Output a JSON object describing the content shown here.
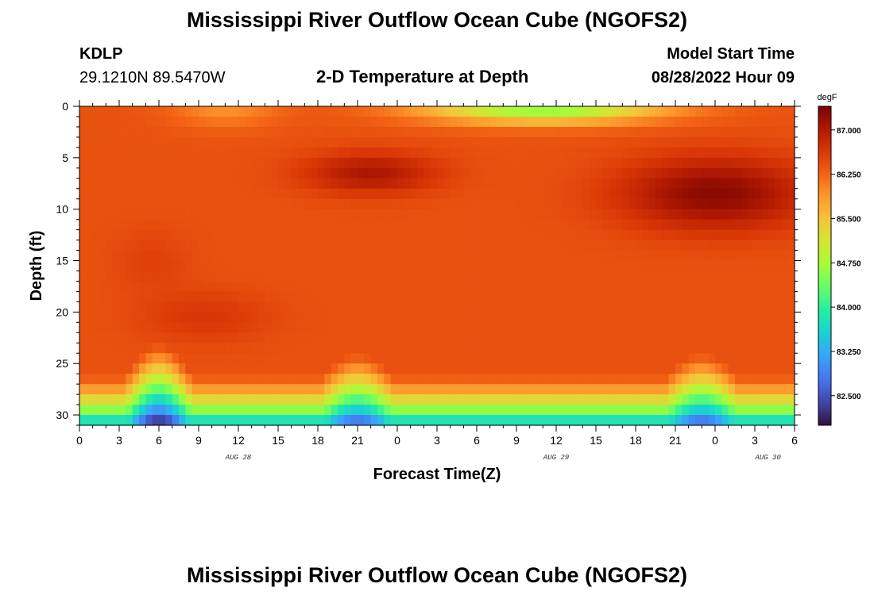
{
  "header": {
    "title": "Mississippi River Outflow Ocean Cube (NGOFS2)",
    "station_id": "KDLP",
    "coordinates": "29.1210N  89.5470W",
    "subtitle": "2-D Temperature at Depth",
    "model_start_label": "Model Start Time",
    "model_start_value": "08/28/2022 Hour 09"
  },
  "footer": {
    "title": "Mississippi River Outflow Ocean Cube (NGOFS2)"
  },
  "chart_data": {
    "type": "heatmap",
    "title": "2-D Temperature at Depth",
    "xlabel": "Forecast Time(Z)",
    "ylabel": "Depth (ft)",
    "x_range_hours": [
      0,
      54
    ],
    "x_ticks": [
      {
        "hour": 0,
        "label": "0"
      },
      {
        "hour": 3,
        "label": "3"
      },
      {
        "hour": 6,
        "label": "6"
      },
      {
        "hour": 9,
        "label": "9"
      },
      {
        "hour": 12,
        "label": "12"
      },
      {
        "hour": 15,
        "label": "15"
      },
      {
        "hour": 18,
        "label": "18"
      },
      {
        "hour": 21,
        "label": "21"
      },
      {
        "hour": 24,
        "label": "0"
      },
      {
        "hour": 27,
        "label": "3"
      },
      {
        "hour": 30,
        "label": "6"
      },
      {
        "hour": 33,
        "label": "9"
      },
      {
        "hour": 36,
        "label": "12"
      },
      {
        "hour": 39,
        "label": "15"
      },
      {
        "hour": 42,
        "label": "18"
      },
      {
        "hour": 45,
        "label": "21"
      },
      {
        "hour": 48,
        "label": "0"
      },
      {
        "hour": 51,
        "label": "3"
      },
      {
        "hour": 54,
        "label": "6"
      }
    ],
    "date_labels": [
      {
        "hour": 12,
        "label": "AUG 28"
      },
      {
        "hour": 36,
        "label": "AUG 29"
      },
      {
        "hour": 52,
        "label": "AUG 30"
      }
    ],
    "y_range": [
      0,
      31
    ],
    "y_ticks": [
      0,
      5,
      10,
      15,
      20,
      25,
      30
    ],
    "colorbar": {
      "unit": "degF",
      "min": 82.0,
      "max": 87.4,
      "ticks": [
        "87.000",
        "86.250",
        "85.500",
        "84.750",
        "84.000",
        "83.250",
        "82.500"
      ],
      "colors": [
        "#30123b",
        "#4145ab",
        "#4675ed",
        "#39a2fc",
        "#1bcfd4",
        "#24eca6",
        "#61fc6c",
        "#a4fc3b",
        "#d1e834",
        "#f3c63a",
        "#fe9b2d",
        "#f36315",
        "#d93806",
        "#b11901",
        "#7a0402"
      ]
    },
    "warm_cores": [
      {
        "hour": 5.5,
        "depth": 15,
        "temp": 86.55,
        "hour_spread": 3,
        "depth_spread": 3
      },
      {
        "hour": 9.5,
        "depth": 20.5,
        "temp": 86.65,
        "hour_spread": 5,
        "depth_spread": 2.5
      },
      {
        "hour": 22,
        "depth": 6.5,
        "temp": 87.05,
        "hour_spread": 5,
        "depth_spread": 2
      },
      {
        "hour": 48,
        "depth": 8.5,
        "temp": 87.3,
        "hour_spread": 7,
        "depth_spread": 3.5
      }
    ],
    "cool_surface_spots": [
      {
        "hour": 11,
        "depth": 0,
        "temp": 85.9,
        "hour_spread": 4,
        "depth_spread": 2
      },
      {
        "hour": 35,
        "depth": 0,
        "temp": 84.5,
        "hour_spread": 9,
        "depth_spread": 1.6
      }
    ],
    "bottom_cool_pulses": [
      {
        "hour": 6,
        "temp": 82.0,
        "spread": 2.8,
        "top_depth": 23
      },
      {
        "hour": 21,
        "temp": 82.5,
        "spread": 3.5,
        "top_depth": 24
      },
      {
        "hour": 47,
        "temp": 82.5,
        "spread": 3.5,
        "top_depth": 24
      }
    ],
    "background_temp": 86.4
  }
}
